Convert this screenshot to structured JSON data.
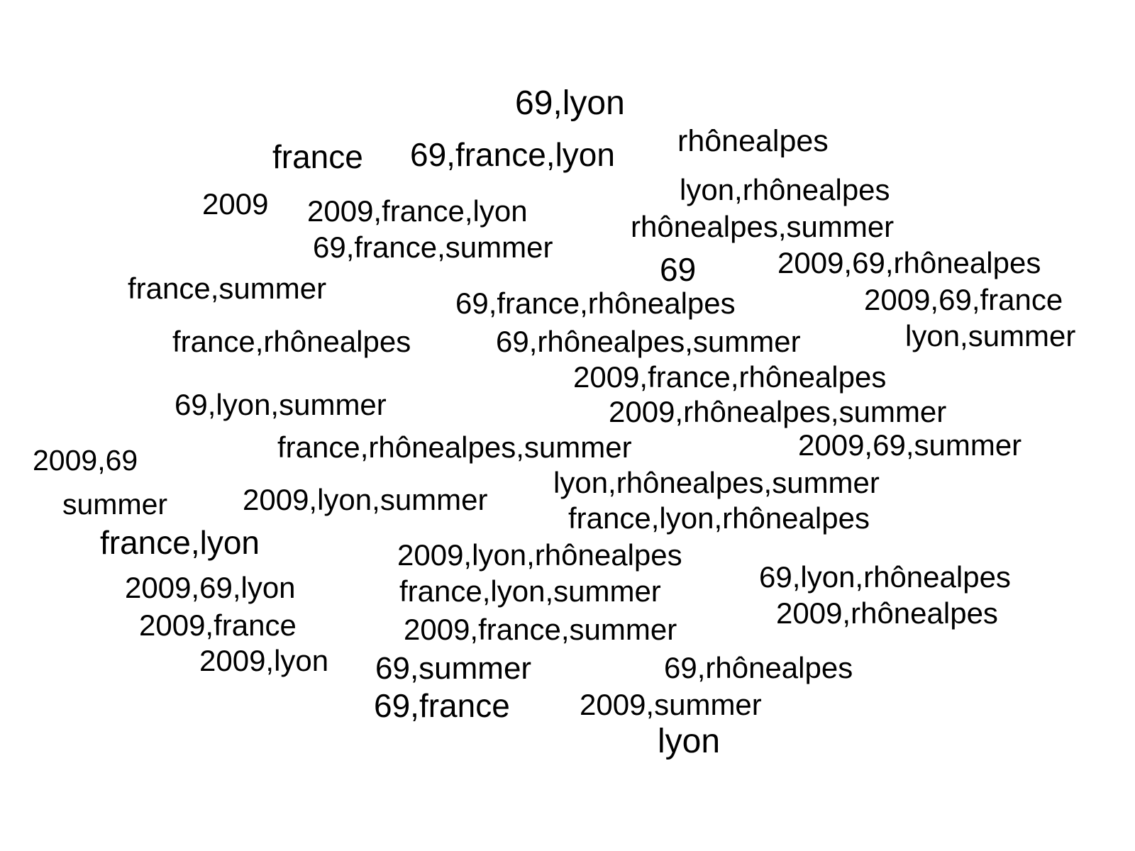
{
  "words": [
    {
      "text": "69,lyon"
    },
    {
      "text": "france"
    },
    {
      "text": "69,france,lyon"
    },
    {
      "text": "rhônealpes"
    },
    {
      "text": "2009"
    },
    {
      "text": "2009,france,lyon"
    },
    {
      "text": "lyon,rhônealpes"
    },
    {
      "text": "rhônealpes,summer"
    },
    {
      "text": "69,france,summer"
    },
    {
      "text": "69"
    },
    {
      "text": "2009,69,rhônealpes"
    },
    {
      "text": "france,summer"
    },
    {
      "text": "69,france,rhônealpes"
    },
    {
      "text": "2009,69,france"
    },
    {
      "text": "france,rhônealpes"
    },
    {
      "text": "69,rhônealpes,summer"
    },
    {
      "text": "lyon,summer"
    },
    {
      "text": "2009,france,rhônealpes"
    },
    {
      "text": "69,lyon,summer"
    },
    {
      "text": "2009,rhônealpes,summer"
    },
    {
      "text": "france,rhônealpes,summer"
    },
    {
      "text": "2009,69,summer"
    },
    {
      "text": "2009,69"
    },
    {
      "text": "lyon,rhônealpes,summer"
    },
    {
      "text": "summer"
    },
    {
      "text": "2009,lyon,summer"
    },
    {
      "text": "france,lyon,rhônealpes"
    },
    {
      "text": "france,lyon"
    },
    {
      "text": "2009,lyon,rhônealpes"
    },
    {
      "text": "2009,69,lyon"
    },
    {
      "text": "france,lyon,summer"
    },
    {
      "text": "69,lyon,rhônealpes"
    },
    {
      "text": "2009,france"
    },
    {
      "text": "2009,rhônealpes"
    },
    {
      "text": "2009,france,summer"
    },
    {
      "text": "2009,lyon"
    },
    {
      "text": "69,summer"
    },
    {
      "text": "69,rhônealpes"
    },
    {
      "text": "69,france"
    },
    {
      "text": "2009,summer"
    },
    {
      "text": "lyon"
    }
  ]
}
